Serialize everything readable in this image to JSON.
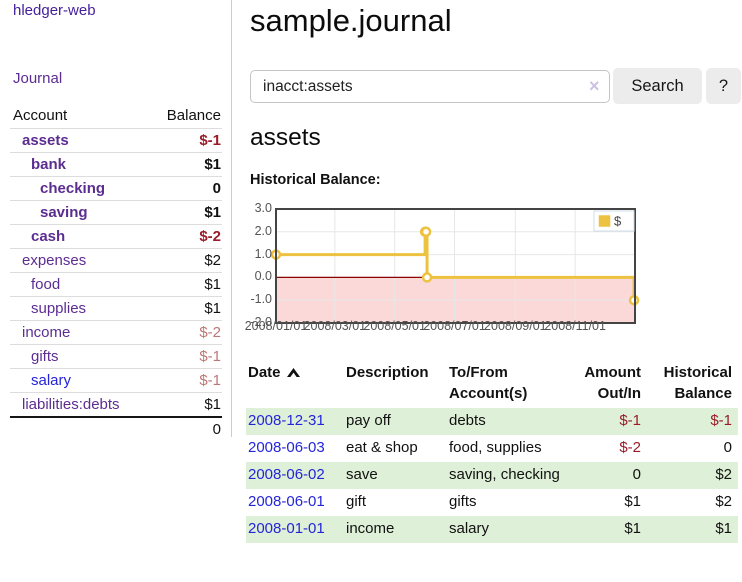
{
  "colors": {
    "purple_link": "#5c2d91",
    "blue_link": "#2525d8",
    "negative_strong": "#9a1c28",
    "negative_soft": "#bd7676",
    "row_green": "#dff0d8",
    "series_gold": "#edc240",
    "negative_region_pink": "#fcd9d9",
    "zero_line_red": "#8b0000",
    "plot_border": "#444444",
    "button_bg": "#ececec"
  },
  "sidebar": {
    "app_title": "hledger-web",
    "journal_link": "Journal",
    "table": {
      "account_header": "Account",
      "balance_header": "Balance",
      "rows": [
        {
          "account": "assets",
          "balance": "$-1",
          "level": 1,
          "bold": true,
          "color": "purple",
          "balance_class": "neg"
        },
        {
          "account": "bank",
          "balance": "$1",
          "level": 2,
          "bold": true,
          "color": "purple",
          "balance_class": ""
        },
        {
          "account": "checking",
          "balance": "0",
          "level": 3,
          "bold": true,
          "color": "purple",
          "balance_class": ""
        },
        {
          "account": "saving",
          "balance": "$1",
          "level": 3,
          "bold": true,
          "color": "purple",
          "balance_class": ""
        },
        {
          "account": "cash",
          "balance": "$-2",
          "level": 2,
          "bold": true,
          "color": "purple",
          "balance_class": "neg"
        },
        {
          "account": "expenses",
          "balance": "$2",
          "level": 1,
          "bold": false,
          "color": "purple",
          "balance_class": ""
        },
        {
          "account": "food",
          "balance": "$1",
          "level": 2,
          "bold": false,
          "color": "purple",
          "balance_class": ""
        },
        {
          "account": "supplies",
          "balance": "$1",
          "level": 2,
          "bold": false,
          "color": "purple",
          "balance_class": ""
        },
        {
          "account": "income",
          "balance": "$-2",
          "level": 1,
          "bold": false,
          "color": "purple",
          "balance_class": "soft"
        },
        {
          "account": "gifts",
          "balance": "$-1",
          "level": 2,
          "bold": false,
          "color": "purple",
          "balance_class": "soft"
        },
        {
          "account": "salary",
          "balance": "$-1",
          "level": 2,
          "bold": false,
          "color": "blue",
          "balance_class": "soft"
        },
        {
          "account": "liabilities:debts",
          "balance": "$1",
          "level": 1,
          "bold": false,
          "color": "purple",
          "balance_class": ""
        }
      ],
      "total": "0"
    }
  },
  "main": {
    "title": "sample.journal",
    "search": {
      "value": "inacct:assets",
      "clear_icon": "×",
      "button_label": "Search",
      "help_button_label": "?"
    },
    "account_heading": "assets",
    "chart_label": "Historical Balance:",
    "register": {
      "headers": {
        "date": "Date",
        "description": "Description",
        "accounts": "To/From Account(s)",
        "amount": "Amount Out/In",
        "balance": "Historical Balance"
      },
      "rows": [
        {
          "date": "2008-12-31",
          "description": "pay off",
          "accounts": "debts",
          "amount": "$-1",
          "amount_neg": true,
          "balance": "$-1",
          "balance_neg": true
        },
        {
          "date": "2008-06-03",
          "description": "eat & shop",
          "accounts": "food, supplies",
          "amount": "$-2",
          "amount_neg": true,
          "balance": "0",
          "balance_neg": false
        },
        {
          "date": "2008-06-02",
          "description": "save",
          "accounts": "saving, checking",
          "amount": "0",
          "amount_neg": false,
          "balance": "$2",
          "balance_neg": false
        },
        {
          "date": "2008-06-01",
          "description": "gift",
          "accounts": "gifts",
          "amount": "$1",
          "amount_neg": false,
          "balance": "$2",
          "balance_neg": false
        },
        {
          "date": "2008-01-01",
          "description": "income",
          "accounts": "salary",
          "amount": "$1",
          "amount_neg": false,
          "balance": "$1",
          "balance_neg": false
        }
      ]
    }
  },
  "chart_data": {
    "type": "line",
    "step": true,
    "title": "Historical Balance:",
    "series": [
      {
        "name": "$",
        "x": [
          "2008-01-01",
          "2008-06-01",
          "2008-06-02",
          "2008-06-03",
          "2008-12-31"
        ],
        "values": [
          1,
          2,
          2,
          0,
          -1
        ]
      }
    ],
    "xlim": [
      "2008-01-01",
      "2009-01-01"
    ],
    "ylim": [
      -2,
      3
    ],
    "yticks": [
      3,
      2,
      1,
      0,
      -1,
      -2
    ],
    "ytick_labels": [
      "3.0",
      "2.0",
      "1.0",
      "0.0",
      "-1.0",
      "-2.0"
    ],
    "xticks": [
      "2008-01-01",
      "2008-03-01",
      "2008-05-01",
      "2008-07-01",
      "2008-09-01",
      "2008-11-01",
      "2009-01-01"
    ],
    "xtick_labels": [
      "2008/01/01",
      "2008/03/01",
      "2008/05/01",
      "2008/07/01",
      "2008/09/01",
      "2008/11/01"
    ],
    "grid": true,
    "legend_position": "top-right",
    "series_color": "#edc240",
    "negative_region_color": "#fcd9d9",
    "zero_line_color": "#8b0000"
  }
}
